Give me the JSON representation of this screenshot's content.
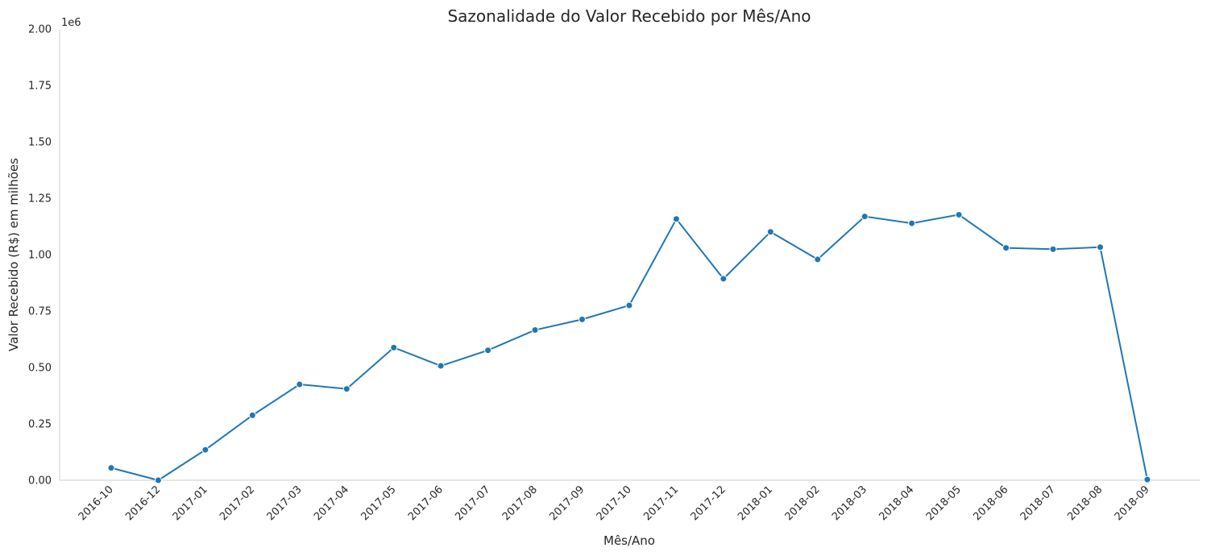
{
  "chart_data": {
    "type": "line",
    "title": "Sazonalidade do Valor Recebido por Mês/Ano",
    "xlabel": "Mês/Ano",
    "ylabel": "Valor Recebido (R$) em milhões",
    "y_offset_label": "1e6",
    "ylim": [
      0,
      2000000
    ],
    "y_ticks": [
      0,
      250000,
      500000,
      750000,
      1000000,
      1250000,
      1500000,
      1750000,
      2000000
    ],
    "y_tick_labels": [
      "0.00",
      "0.25",
      "0.50",
      "0.75",
      "1.00",
      "1.25",
      "1.50",
      "1.75",
      "2.00"
    ],
    "grid": false,
    "legend": "none",
    "color": "#1f77b4",
    "categories": [
      "2016-10",
      "2016-12",
      "2017-01",
      "2017-02",
      "2017-03",
      "2017-04",
      "2017-05",
      "2017-06",
      "2017-07",
      "2017-08",
      "2017-09",
      "2017-10",
      "2017-11",
      "2017-12",
      "2018-01",
      "2018-02",
      "2018-03",
      "2018-04",
      "2018-05",
      "2018-06",
      "2018-07",
      "2018-08",
      "2018-09"
    ],
    "values": [
      55000,
      0,
      135000,
      288000,
      425000,
      405000,
      588000,
      507000,
      576000,
      666000,
      713000,
      775000,
      1158000,
      893000,
      1101000,
      979000,
      1169000,
      1139000,
      1177000,
      1030000,
      1024000,
      1033000,
      3000
    ]
  }
}
